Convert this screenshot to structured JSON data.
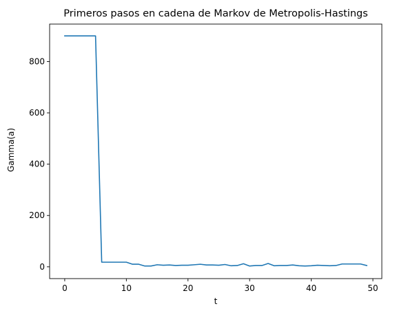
{
  "chart_data": {
    "type": "line",
    "title": "Primeros pasos en cadena de Markov de Metropolis-Hastings",
    "xlabel": "t",
    "ylabel": "Gamma(a)",
    "xlim": [
      -2.45,
      51.45
    ],
    "ylim": [
      -46,
      946
    ],
    "xticks": [
      0,
      10,
      20,
      30,
      40,
      50
    ],
    "yticks": [
      0,
      200,
      400,
      600,
      800
    ],
    "grid": false,
    "legend": "none",
    "series": [
      {
        "color": "#1f77b4",
        "x": [
          0,
          1,
          2,
          3,
          4,
          5,
          6,
          7,
          8,
          9,
          10,
          11,
          12,
          13,
          14,
          15,
          16,
          17,
          18,
          19,
          20,
          21,
          22,
          23,
          24,
          25,
          26,
          27,
          28,
          29,
          30,
          31,
          32,
          33,
          34,
          35,
          36,
          37,
          38,
          39,
          40,
          41,
          42,
          43,
          44,
          45,
          46,
          47,
          48,
          49
        ],
        "y": [
          900,
          900,
          900,
          900,
          900,
          900,
          18,
          18,
          18,
          18,
          18,
          10,
          10,
          3,
          3,
          8,
          6,
          7,
          5,
          6,
          6,
          8,
          10,
          7,
          7,
          6,
          9,
          4,
          5,
          12,
          3,
          5,
          5,
          13,
          4,
          5,
          5,
          7,
          4,
          3,
          4,
          6,
          5,
          4,
          5,
          11,
          11,
          11,
          11,
          5
        ]
      }
    ]
  }
}
